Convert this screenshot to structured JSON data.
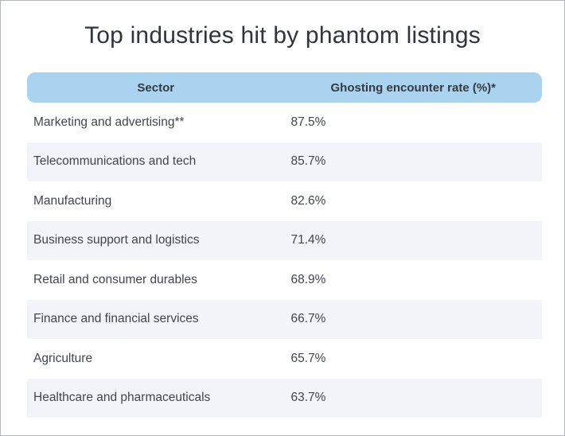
{
  "title": "Top industries hit by phantom listings",
  "table": {
    "columns": [
      "Sector",
      "Ghosting encounter rate (%)*"
    ],
    "rows": [
      {
        "sector": "Marketing and advertising**",
        "rate": "87.5%"
      },
      {
        "sector": "Telecommunications and tech",
        "rate": "85.7%"
      },
      {
        "sector": "Manufacturing",
        "rate": "82.6%"
      },
      {
        "sector": "Business support and logistics",
        "rate": "71.4%"
      },
      {
        "sector": "Retail and consumer durables",
        "rate": "68.9%"
      },
      {
        "sector": "Finance and financial services",
        "rate": "66.7%"
      },
      {
        "sector": "Agriculture",
        "rate": "65.7%"
      },
      {
        "sector": "Healthcare and pharmaceuticals",
        "rate": "63.7%"
      }
    ]
  },
  "colors": {
    "header_bg": "#a9d3ef",
    "stripe_bg": "#f2f4f9",
    "row_text": "#41454d",
    "header_text": "#343a40",
    "title_text": "#30353b",
    "page_border": "#b4b7ba"
  },
  "chart_data": {
    "type": "table",
    "title": "Top industries hit by phantom listings",
    "columns": [
      "Sector",
      "Ghosting encounter rate (%)*"
    ],
    "categories": [
      "Marketing and advertising**",
      "Telecommunications and tech",
      "Manufacturing",
      "Business support and logistics",
      "Retail and consumer durables",
      "Finance and financial services",
      "Agriculture",
      "Healthcare and pharmaceuticals"
    ],
    "values": [
      87.5,
      85.7,
      82.6,
      71.4,
      68.9,
      66.7,
      65.7,
      63.7
    ],
    "legend_position": "none",
    "grid": false
  }
}
